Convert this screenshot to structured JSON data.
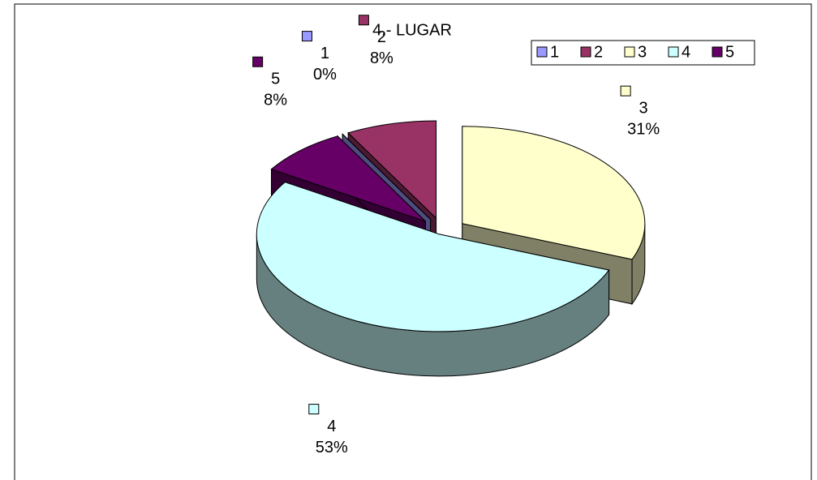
{
  "chart_data": {
    "type": "pie3d",
    "title": "4.- LUGAR",
    "categories": [
      "1",
      "2",
      "3",
      "4",
      "5"
    ],
    "values": [
      0,
      8,
      31,
      53,
      8
    ],
    "value_labels": [
      "0%",
      "8%",
      "31%",
      "53%",
      "8%"
    ],
    "colors": [
      "#9999ff",
      "#993366",
      "#ffffcc",
      "#ccffff",
      "#660066"
    ],
    "legend": "top-right"
  }
}
